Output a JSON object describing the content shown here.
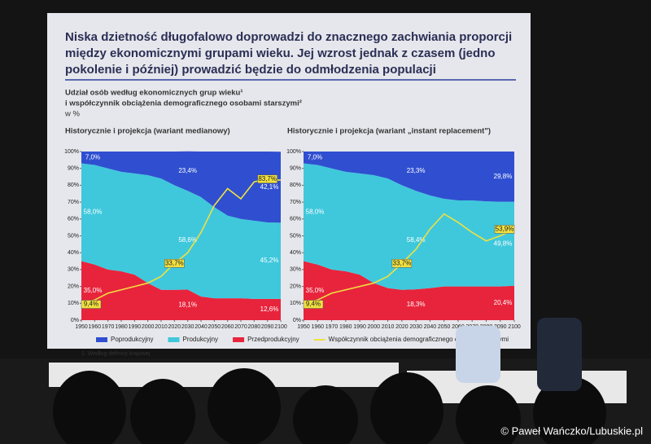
{
  "slide": {
    "title": [
      "Niska dzietność długofalowo doprowadzi do znacznego zachwiania proporcji",
      "między ekonomicznymi grupami wieku. Jej wzrost jednak z czasem (jedno",
      "pokolenie i później) prowadzić będzie do odmłodzenia populacji"
    ],
    "subtitle": [
      "Udział osób według ekonomicznych grup wieku¹",
      "i współczynnik obciążenia demograficznego osobami starszymi²",
      "w %"
    ],
    "footnote": "1. Według definicji krajowej",
    "credit": "© Paweł Wańczko/Lubuskie.pl"
  },
  "chart_data": [
    {
      "type": "stacked_area",
      "title": "Historycznie i projekcja (wariant medianowy)",
      "x": [
        1950,
        1960,
        1970,
        1980,
        1990,
        2000,
        2010,
        2020,
        2030,
        2040,
        2050,
        2060,
        2070,
        2080,
        2090,
        2100
      ],
      "xlim": [
        1950,
        2100
      ],
      "xticks": [
        1950,
        1960,
        1970,
        1980,
        1990,
        2000,
        2010,
        2020,
        2030,
        2040,
        2050,
        2060,
        2070,
        2080,
        2090,
        2100
      ],
      "ylim": [
        0,
        100
      ],
      "yticks": [
        {
          "value": 0,
          "label": "0%"
        },
        {
          "value": 10,
          "label": "10%"
        },
        {
          "value": 20,
          "label": "20%"
        },
        {
          "value": 30,
          "label": "30%"
        },
        {
          "value": 40,
          "label": "40%"
        },
        {
          "value": 50,
          "label": "50%"
        },
        {
          "value": 60,
          "label": "60%"
        },
        {
          "value": 70,
          "label": "70%"
        },
        {
          "value": 80,
          "label": "80%"
        },
        {
          "value": 90,
          "label": "90%"
        },
        {
          "value": 100,
          "label": "100%"
        }
      ],
      "series": [
        {
          "name": "Poprodukcyjny",
          "color": "#2f4fd0",
          "values": [
            7,
            8,
            10,
            12,
            13,
            14,
            16,
            20,
            23.4,
            27,
            33,
            38,
            40,
            41,
            42,
            42.1
          ],
          "value_labels": [
            "7,0%",
            null,
            null,
            null,
            null,
            null,
            null,
            null,
            "23,4%",
            null,
            null,
            null,
            null,
            null,
            null,
            "42,1%"
          ]
        },
        {
          "name": "Produkcyjny",
          "color": "#3fc8dc",
          "values": [
            58,
            59,
            60,
            59,
            60,
            64,
            66,
            62,
            58.6,
            59,
            54,
            49,
            47,
            46.4,
            45.4,
            45.2
          ],
          "value_labels": [
            "58,0%",
            null,
            null,
            null,
            null,
            null,
            null,
            null,
            "58,6%",
            null,
            null,
            null,
            null,
            null,
            null,
            "45,2%"
          ]
        },
        {
          "name": "Przedprodukcyjny",
          "color": "#e8243c",
          "values": [
            35,
            33,
            30,
            29,
            27,
            22,
            18,
            18,
            18.1,
            14,
            13,
            13,
            13,
            12.6,
            12.6,
            12.6
          ],
          "value_labels": [
            "35,0%",
            null,
            null,
            null,
            null,
            null,
            null,
            null,
            "18,1%",
            null,
            null,
            null,
            null,
            null,
            null,
            "12,6%"
          ]
        }
      ],
      "line": {
        "name": "Współczynnik obciążenia demograficznego osobami starszymi",
        "color": "#f0e040",
        "values": [
          9.4,
          12,
          16,
          18,
          20,
          22,
          26,
          33.7,
          40,
          52,
          68,
          78,
          72,
          82,
          83.7,
          83
        ],
        "value_labels": [
          "9,4%",
          null,
          null,
          null,
          null,
          null,
          null,
          "33,7%",
          null,
          null,
          null,
          null,
          null,
          null,
          "83,7%",
          null
        ]
      }
    },
    {
      "type": "stacked_area",
      "title": "Historycznie i projekcja (wariant „instant replacement\")",
      "x": [
        1950,
        1960,
        1970,
        1980,
        1990,
        2000,
        2010,
        2020,
        2030,
        2040,
        2050,
        2060,
        2070,
        2080,
        2090,
        2100
      ],
      "xlim": [
        1950,
        2100
      ],
      "xticks": [
        1950,
        1960,
        1970,
        1980,
        1990,
        2000,
        2010,
        2020,
        2030,
        2040,
        2050,
        2060,
        2070,
        2080,
        2090,
        2100
      ],
      "ylim": [
        0,
        100
      ],
      "yticks": [
        {
          "value": 0,
          "label": "0%"
        },
        {
          "value": 10,
          "label": "10%"
        },
        {
          "value": 20,
          "label": "20%"
        },
        {
          "value": 30,
          "label": "30%"
        },
        {
          "value": 40,
          "label": "40%"
        },
        {
          "value": 50,
          "label": "50%"
        },
        {
          "value": 60,
          "label": "60%"
        },
        {
          "value": 70,
          "label": "70%"
        },
        {
          "value": 80,
          "label": "80%"
        },
        {
          "value": 90,
          "label": "90%"
        },
        {
          "value": 100,
          "label": "100%"
        }
      ],
      "series": [
        {
          "color": "#2f4fd0",
          "values": [
            7,
            8,
            10,
            12,
            13,
            14,
            16,
            20,
            23.3,
            26,
            28,
            29,
            29,
            29.5,
            29.8,
            29.8
          ],
          "value_labels": [
            "7,0%",
            null,
            null,
            null,
            null,
            null,
            null,
            null,
            "23,3%",
            null,
            null,
            null,
            null,
            null,
            null,
            "29,8%"
          ]
        },
        {
          "color": "#3fc8dc",
          "values": [
            58,
            59,
            60,
            59,
            60,
            64,
            65,
            62,
            58.4,
            55,
            52,
            51,
            51,
            50.5,
            50.2,
            49.8
          ],
          "value_labels": [
            "58,0%",
            null,
            null,
            null,
            null,
            null,
            null,
            null,
            "58,4%",
            null,
            null,
            null,
            null,
            null,
            null,
            "49,8%"
          ]
        },
        {
          "color": "#e8243c",
          "values": [
            35,
            33,
            30,
            29,
            27,
            22,
            19,
            18,
            18.3,
            19,
            20,
            20,
            20,
            20,
            20,
            20.4
          ],
          "value_labels": [
            "35,0%",
            null,
            null,
            null,
            null,
            null,
            null,
            null,
            "18,3%",
            null,
            null,
            null,
            null,
            null,
            null,
            "20,4%"
          ]
        }
      ],
      "line": {
        "color": "#f0e040",
        "values": [
          9.4,
          12,
          16,
          18,
          20,
          22,
          26,
          33.7,
          42,
          54,
          63,
          58,
          52,
          47,
          50,
          53.9
        ],
        "value_labels": [
          "9,4%",
          null,
          null,
          null,
          null,
          null,
          null,
          "33,7%",
          null,
          null,
          null,
          null,
          null,
          null,
          null,
          "53,9%"
        ]
      }
    }
  ]
}
